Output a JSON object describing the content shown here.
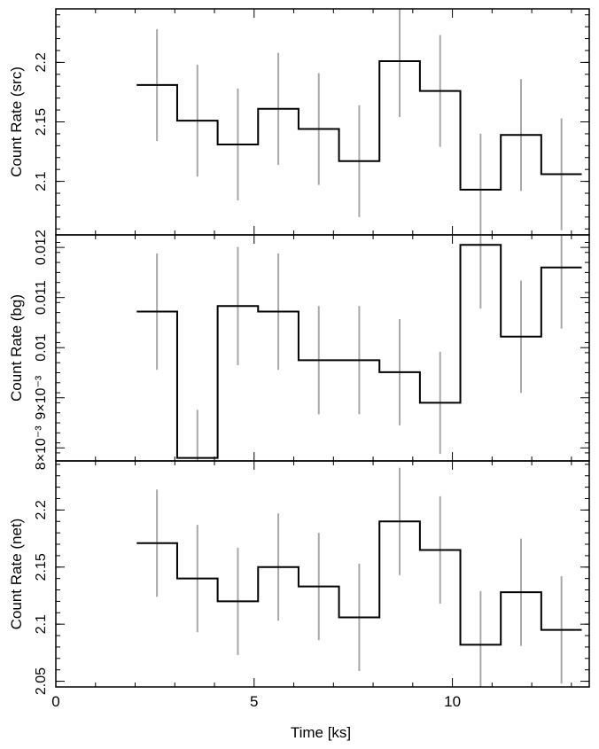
{
  "chart_data": [
    {
      "type": "line",
      "ylabel": "Count Rate (src)",
      "ylim": [
        2.055,
        2.245
      ],
      "yticks": [
        "2.1",
        "2.15",
        "2.2"
      ],
      "x_edges": [
        2.04,
        3.06,
        4.08,
        5.1,
        6.12,
        7.14,
        8.16,
        9.18,
        10.2,
        11.22,
        12.24,
        13.26
      ],
      "x_centers": [
        2.55,
        3.57,
        4.59,
        5.61,
        6.63,
        7.65,
        8.67,
        9.69,
        10.71,
        11.73,
        12.75
      ],
      "values": [
        2.181,
        2.151,
        2.131,
        2.161,
        2.144,
        2.117,
        2.201,
        2.176,
        2.093,
        2.139,
        2.106
      ],
      "errors": [
        0.047,
        0.047,
        0.047,
        0.047,
        0.047,
        0.047,
        0.047,
        0.047,
        0.047,
        0.047,
        0.047
      ]
    },
    {
      "type": "line",
      "ylabel": "Count Rate (bg)",
      "ylim": [
        0.00774,
        0.01225
      ],
      "yticks": [
        "8×10⁻³",
        "9×10⁻³",
        "0.01",
        "0.011",
        "0.012"
      ],
      "x_edges": [
        2.04,
        3.06,
        4.08,
        5.1,
        6.12,
        7.14,
        8.16,
        9.18,
        10.2,
        11.22,
        12.24,
        13.26
      ],
      "x_centers": [
        2.55,
        3.57,
        4.59,
        5.61,
        6.63,
        7.65,
        8.67,
        9.69,
        10.71,
        11.73,
        12.75
      ],
      "values": [
        0.01072,
        0.0078,
        0.01083,
        0.01072,
        0.00975,
        0.00975,
        0.00951,
        0.0089,
        0.01205,
        0.01022,
        0.0116
      ],
      "errors": [
        0.00116,
        0.00096,
        0.00118,
        0.00116,
        0.00108,
        0.00108,
        0.00106,
        0.00102,
        0.00127,
        0.00112,
        0.00122
      ]
    },
    {
      "type": "line",
      "ylabel": "Count Rate (net)",
      "ylim": [
        2.045,
        2.243
      ],
      "yticks": [
        "2.05",
        "2.1",
        "2.15",
        "2.2"
      ],
      "x_edges": [
        2.04,
        3.06,
        4.08,
        5.1,
        6.12,
        7.14,
        8.16,
        9.18,
        10.2,
        11.22,
        12.24,
        13.26
      ],
      "x_centers": [
        2.55,
        3.57,
        4.59,
        5.61,
        6.63,
        7.65,
        8.67,
        9.69,
        10.71,
        11.73,
        12.75
      ],
      "values": [
        2.171,
        2.14,
        2.12,
        2.15,
        2.133,
        2.106,
        2.19,
        2.165,
        2.082,
        2.128,
        2.095
      ],
      "errors": [
        0.047,
        0.047,
        0.047,
        0.047,
        0.047,
        0.047,
        0.047,
        0.047,
        0.047,
        0.047,
        0.047
      ]
    }
  ],
  "xaxis": {
    "label": "Time [ks]",
    "xlim": [
      0,
      13.45
    ],
    "ticks": [
      "0",
      "5",
      "10"
    ]
  },
  "colors": {
    "step": "#000000",
    "errorbar": "#a8a8a8",
    "frame": "#000000"
  }
}
